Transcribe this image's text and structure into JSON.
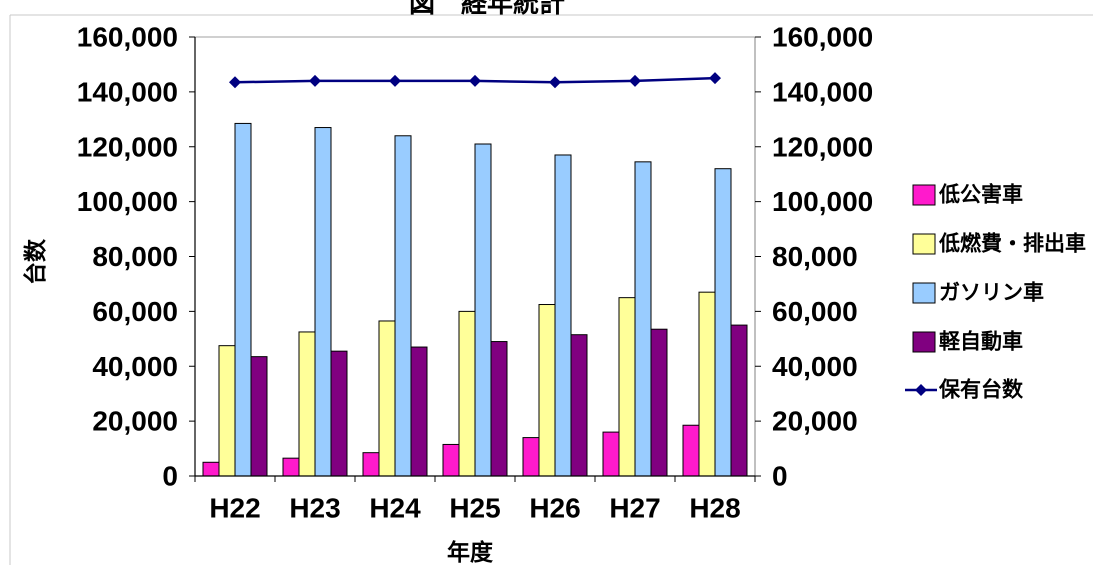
{
  "chart_data": {
    "type": "bar",
    "title": "図　経年統計",
    "xlabel": "年度",
    "ylabel": "台数",
    "categories": [
      "H22",
      "H23",
      "H24",
      "H25",
      "H26",
      "H27",
      "H28"
    ],
    "ylim": [
      0,
      160000
    ],
    "y2lim": [
      0,
      160000
    ],
    "yticks": [
      0,
      20000,
      40000,
      60000,
      80000,
      100000,
      120000,
      140000,
      160000
    ],
    "ytick_labels": [
      "0",
      "20,000",
      "40,000",
      "60,000",
      "80,000",
      "100,000",
      "120,000",
      "140,000",
      "160,000"
    ],
    "y2tick_labels": [
      "0",
      "20,000",
      "40,000",
      "60,000",
      "80,000",
      "100,000",
      "120,000",
      "140,000",
      "160,000"
    ],
    "grid": false,
    "legend": "right",
    "series": [
      {
        "name": "低公害車",
        "type": "bar",
        "color": "#FF1ACC",
        "values": [
          5000,
          6500,
          8500,
          11500,
          14000,
          16000,
          18500
        ]
      },
      {
        "name": "低燃費・排出車",
        "type": "bar",
        "color": "#FFFF99",
        "values": [
          47500,
          52500,
          56500,
          60000,
          62500,
          65000,
          67000
        ]
      },
      {
        "name": "ガソリン車",
        "type": "bar",
        "color": "#99CCFF",
        "values": [
          128500,
          127000,
          124000,
          121000,
          117000,
          114500,
          112000
        ]
      },
      {
        "name": "軽自動車",
        "type": "bar",
        "color": "#800080",
        "values": [
          43500,
          45500,
          47000,
          49000,
          51500,
          53500,
          55000
        ]
      },
      {
        "name": "保有台数",
        "type": "line",
        "color": "#000080",
        "marker": "diamond",
        "values": [
          143500,
          144000,
          144000,
          144000,
          143500,
          144000,
          145000
        ]
      }
    ]
  }
}
